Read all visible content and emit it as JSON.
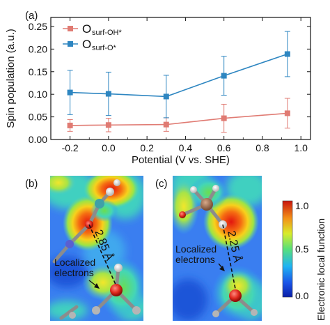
{
  "panel_a_label": "(a)",
  "panel_b_label": "(b)",
  "panel_c_label": "(c)",
  "chart_data": {
    "type": "line",
    "ylabel": "Spin population (a.u.)",
    "xlabel": "Potential (V vs. SHE)",
    "xlim": [
      -0.3,
      1.05
    ],
    "ylim": [
      0.0,
      0.27
    ],
    "x_ticks": [
      -0.2,
      0.0,
      0.2,
      0.4,
      0.6,
      0.8,
      1.0
    ],
    "x_tick_labels": [
      "-0.2",
      "0.0",
      "0.2",
      "0.4",
      "0.6",
      "0.8",
      "1.0"
    ],
    "y_ticks": [
      0.0,
      0.05,
      0.1,
      0.15,
      0.2,
      0.25
    ],
    "y_tick_labels": [
      "0.00",
      "0.05",
      "0.10",
      "0.15",
      "0.20",
      "0.25"
    ],
    "legend_position": "top-left",
    "grid": false,
    "series": [
      {
        "name": "O",
        "subscript": "surf-OH*",
        "color": "#e07b73",
        "marker": "square",
        "x": [
          -0.2,
          0.0,
          0.3,
          0.6,
          0.93
        ],
        "y": [
          0.031,
          0.032,
          0.033,
          0.047,
          0.058
        ],
        "err": [
          0.013,
          0.015,
          0.015,
          0.031,
          0.033
        ]
      },
      {
        "name": "O",
        "subscript": "surf-O*",
        "color": "#2e86c1",
        "marker": "square",
        "x": [
          -0.2,
          0.0,
          0.3,
          0.6,
          0.93
        ],
        "y": [
          0.104,
          0.101,
          0.095,
          0.141,
          0.189
        ],
        "err": [
          0.049,
          0.048,
          0.047,
          0.043,
          0.05
        ]
      }
    ]
  },
  "panel_b": {
    "distance_label": "2.85 Å",
    "annotation_line1": "Localized",
    "annotation_line2": "electrons"
  },
  "panel_c": {
    "distance_label": "2.25 Å",
    "annotation_line1": "Localized",
    "annotation_line2": "electrons"
  },
  "colorbar": {
    "label": "Electronic local function",
    "tick_labels": [
      "1.0",
      "0.5",
      "0.0"
    ],
    "ticks": [
      1.0,
      0.5,
      0.0
    ]
  }
}
